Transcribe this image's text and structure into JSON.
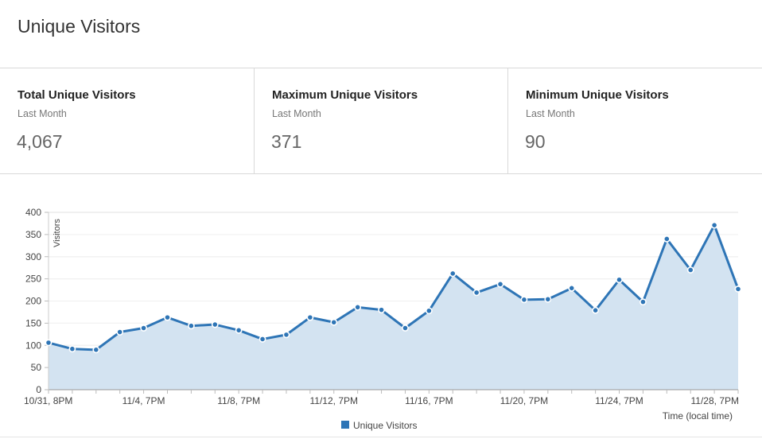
{
  "header": {
    "title": "Unique Visitors"
  },
  "stats": [
    {
      "label": "Total Unique Visitors",
      "period": "Last Month",
      "value": "4,067"
    },
    {
      "label": "Maximum Unique Visitors",
      "period": "Last Month",
      "value": "371"
    },
    {
      "label": "Minimum Unique Visitors",
      "period": "Last Month",
      "value": "90"
    }
  ],
  "colors": {
    "line": "#2e75b6",
    "fill": "#d3e3f1",
    "grid": "#e0e0e0"
  },
  "chart_data": {
    "type": "area",
    "title": "",
    "xlabel": "Time (local time)",
    "ylabel": "Visitors",
    "ylim": [
      0,
      400
    ],
    "yticks": [
      0,
      50,
      100,
      150,
      200,
      250,
      300,
      350,
      400
    ],
    "xtick_labels": [
      "10/31, 8PM",
      "11/4, 7PM",
      "11/8, 7PM",
      "11/12, 7PM",
      "11/16, 7PM",
      "11/20, 7PM",
      "11/24, 7PM",
      "11/28, 7PM"
    ],
    "legend": {
      "position": "bottom-center",
      "entries": [
        "Unique Visitors"
      ]
    },
    "grid": true,
    "series": [
      {
        "name": "Unique Visitors",
        "values": [
          106,
          92,
          90,
          130,
          139,
          163,
          144,
          147,
          134,
          114,
          124,
          163,
          152,
          186,
          180,
          139,
          178,
          262,
          219,
          238,
          203,
          204,
          229,
          179,
          248,
          198,
          340,
          270,
          371,
          227
        ]
      }
    ]
  }
}
